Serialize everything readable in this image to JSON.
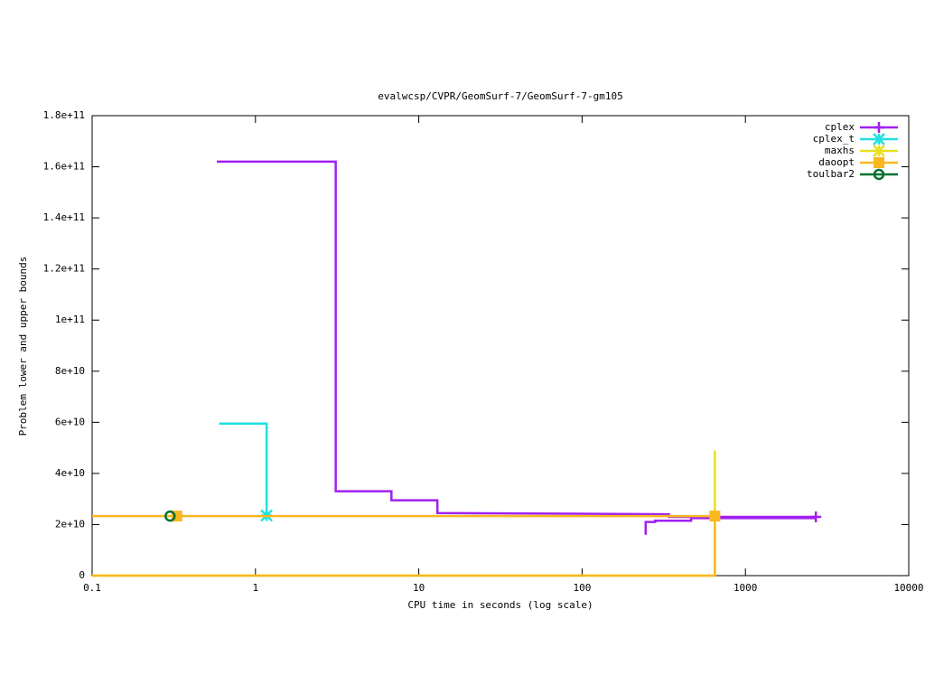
{
  "chart_data": {
    "type": "line",
    "title": "evalwcsp/CVPR/GeomSurf-7/GeomSurf-7-gm105",
    "x_label": "CPU time in seconds (log scale)",
    "y_label": "Problem lower and upper bounds",
    "xlog": true,
    "xlim": [
      0.1,
      10000
    ],
    "xticks": [
      0.1,
      1,
      10,
      100,
      1000,
      10000
    ],
    "ylim": [
      0,
      180000000000
    ],
    "yticks": [
      0,
      {
        "value": 20000000000,
        "label": "2e+10"
      },
      {
        "value": 40000000000,
        "label": "4e+10"
      },
      {
        "value": 60000000000,
        "label": "6e+10"
      },
      {
        "value": 80000000000,
        "label": "8e+10"
      },
      {
        "value": 100000000000,
        "label": "1e+11"
      },
      {
        "value": 120000000000,
        "label": "1.2e+11"
      },
      {
        "value": 140000000000,
        "label": "1.4e+11"
      },
      {
        "value": 160000000000,
        "label": "1.6e+11"
      },
      {
        "value": 180000000000,
        "label": "1.8e+11"
      }
    ],
    "legend": "top-right",
    "series": [
      {
        "name": "cplex",
        "color": "#a020f0",
        "x": [
          0.58,
          3.1,
          3.1,
          6.8,
          6.8,
          13,
          13,
          340,
          340,
          2700,
          2.9,
          245,
          245,
          280,
          280,
          465,
          465,
          2700
        ],
        "values": [
          162000000000,
          162000000000,
          33000000000,
          33000000000,
          29500000000,
          29500000000,
          24500000000,
          24000000000,
          23000000000,
          23000000000,
          null,
          16000000000,
          21000000000,
          21000000000,
          21500000000,
          21500000000,
          22500000000,
          22500000000
        ],
        "points": {
          "x": [
            2700
          ],
          "values": [
            23000000000
          ]
        }
      },
      {
        "name": "cplex_t",
        "color": "#20e0e0",
        "x": [
          0.6,
          1.17,
          1.17
        ],
        "values": [
          59500000000,
          59500000000,
          23500000000
        ],
        "points": {
          "x": [
            1.17
          ],
          "values": [
            23500000000
          ]
        }
      },
      {
        "name": "maxhs",
        "color": "#e8e020",
        "x": [
          0.1,
          650,
          650
        ],
        "values": [
          0,
          0,
          49000000000
        ]
      },
      {
        "name": "daoopt",
        "color": "#f8b820",
        "x": [
          0.1,
          650,
          650,
          0.1
        ],
        "values": [
          23300000000,
          23300000000,
          0,
          0
        ],
        "points": {
          "x": [
            0.33,
            650
          ],
          "values": [
            23300000000,
            23300000000
          ]
        }
      },
      {
        "name": "toulbar2",
        "color": "#007030",
        "x": [
          0.3
        ],
        "values": [
          23300000000
        ],
        "points": {
          "x": [
            0.3
          ],
          "values": [
            23300000000
          ]
        }
      }
    ]
  }
}
